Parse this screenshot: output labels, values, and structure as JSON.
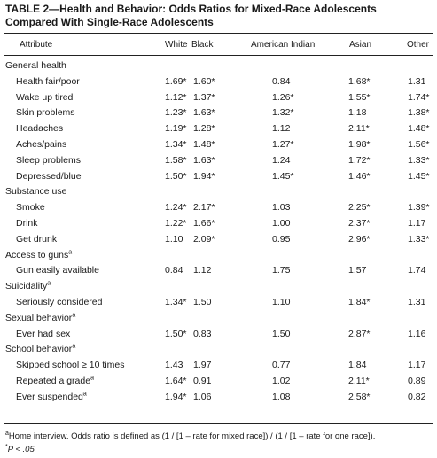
{
  "header": {
    "title": "TABLE 2—Health and Behavior: Odds Ratios for Mixed-Race Adolescents Compared With Single-Race Adolescents"
  },
  "table": {
    "columns": [
      "Attribute",
      "White",
      "Black",
      "American Indian",
      "Asian",
      "Other"
    ],
    "sections": [
      {
        "label": "General health",
        "rows": [
          {
            "label": "Health fair/poor",
            "values": [
              "1.69*",
              "1.60*",
              "0.84",
              "1.68*",
              "1.31"
            ]
          },
          {
            "label": "Wake up tired",
            "values": [
              "1.12*",
              "1.37*",
              "1.26*",
              "1.55*",
              "1.74*"
            ]
          },
          {
            "label": "Skin problems",
            "values": [
              "1.23*",
              "1.63*",
              "1.32*",
              "1.18",
              "1.38*"
            ]
          },
          {
            "label": "Headaches",
            "values": [
              "1.19*",
              "1.28*",
              "1.12",
              "2.11*",
              "1.48*"
            ]
          },
          {
            "label": "Aches/pains",
            "values": [
              "1.34*",
              "1.48*",
              "1.27*",
              "1.98*",
              "1.56*"
            ]
          },
          {
            "label": "Sleep problems",
            "values": [
              "1.58*",
              "1.63*",
              "1.24",
              "1.72*",
              "1.33*"
            ]
          },
          {
            "label": "Depressed/blue",
            "values": [
              "1.50*",
              "1.94*",
              "1.45*",
              "1.46*",
              "1.45*"
            ]
          }
        ]
      },
      {
        "label": "Substance use",
        "rows": [
          {
            "label": "Smoke",
            "values": [
              "1.24*",
              "2.17*",
              "1.03",
              "2.25*",
              "1.39*"
            ]
          },
          {
            "label": "Drink",
            "values": [
              "1.22*",
              "1.66*",
              "1.00",
              "2.37*",
              "1.17"
            ]
          },
          {
            "label": "Get drunk",
            "values": [
              "1.10",
              "2.09*",
              "0.95",
              "2.96*",
              "1.33*"
            ]
          }
        ]
      },
      {
        "label": "Access to guns",
        "note": "a",
        "rows": [
          {
            "label": "Gun easily available",
            "values": [
              "0.84",
              "1.12",
              "1.75",
              "1.57",
              "1.74"
            ]
          }
        ]
      },
      {
        "label": "Suicidality",
        "note": "a",
        "rows": [
          {
            "label": "Seriously considered",
            "values": [
              "1.34*",
              "1.50",
              "1.10",
              "1.84*",
              "1.31"
            ]
          }
        ]
      },
      {
        "label": "Sexual behavior",
        "note": "a",
        "rows": [
          {
            "label": "Ever had sex",
            "values": [
              "1.50*",
              "0.83",
              "1.50",
              "2.87*",
              "1.16"
            ]
          }
        ]
      },
      {
        "label": "School behavior",
        "note": "a",
        "rows": [
          {
            "label": "Skipped school ≥ 10 times",
            "values": [
              "1.43",
              "1.97",
              "0.77",
              "1.84",
              "1.17"
            ]
          },
          {
            "label": "Repeated a grade",
            "note": "a",
            "values": [
              "1.64*",
              "0.91",
              "1.02",
              "2.11*",
              "0.89"
            ]
          },
          {
            "label": "Ever suspended",
            "note": "a",
            "values": [
              "1.94*",
              "1.06",
              "1.08",
              "2.58*",
              "0.82"
            ]
          }
        ]
      }
    ]
  },
  "footnotes": [
    {
      "mark": "a",
      "text": "Home interview. Odds ratio is defined as (1 / [1 – rate for mixed race]) / (1 / [1 – rate for one race])."
    },
    {
      "mark": "*",
      "text": "P < .05"
    }
  ]
}
